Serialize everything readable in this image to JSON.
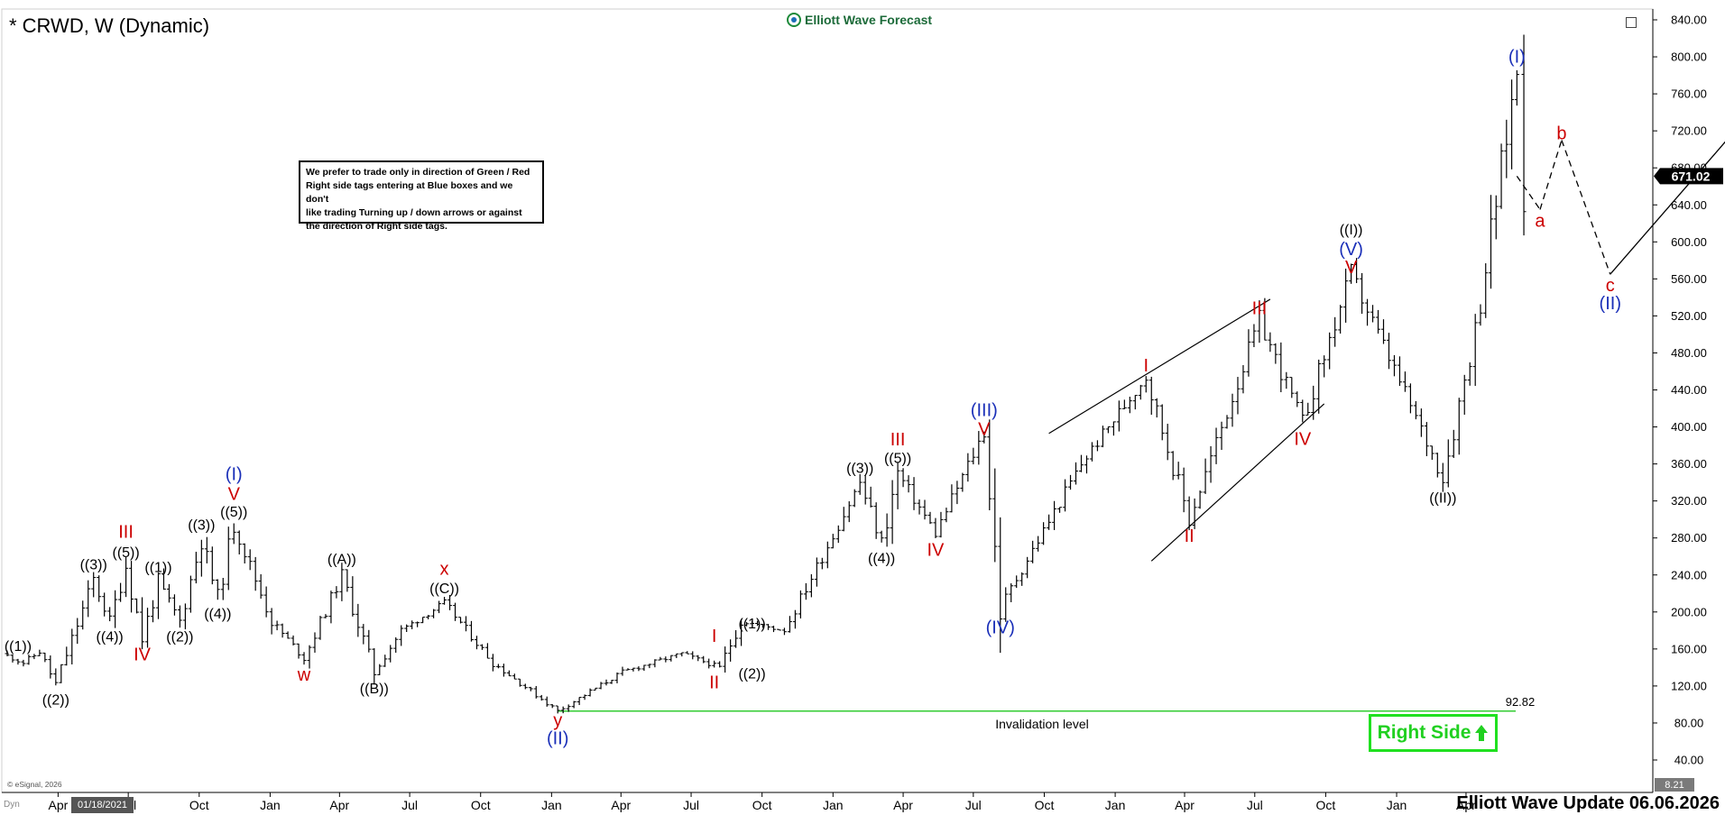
{
  "header": {
    "title": "* CRWD, W (Dynamic)",
    "brand": "Elliott Wave Forecast",
    "brand_icon": "ewf-logo-icon"
  },
  "note": {
    "lines": [
      "We prefer to trade only in direction of Green / Red",
      "Right side tags entering at Blue boxes and we don't",
      "like trading Turning up / down arrows or against",
      "the direction of Right side tags."
    ]
  },
  "right_side_tag": {
    "label": "Right Side",
    "icon": "up-arrow-icon",
    "color": "#20d020"
  },
  "footer": {
    "update_label": "Elliott Wave Update 06.06.2026",
    "esignal": "© eSignal, 2026",
    "start_date": "01/18/2021",
    "dyn": "Dyn"
  },
  "price_scale": {
    "ticks": [
      "840.00",
      "800.00",
      "760.00",
      "720.00",
      "680.00",
      "640.00",
      "600.00",
      "560.00",
      "520.00",
      "480.00",
      "440.00",
      "400.00",
      "360.00",
      "320.00",
      "280.00",
      "240.00",
      "200.00",
      "160.00",
      "120.00",
      "80.00",
      "40.00"
    ],
    "last_price": "671.02",
    "bottom_value": "8.21"
  },
  "chart_data": {
    "type": "line",
    "title": "* CRWD, W (Dynamic)",
    "ylim": [
      8.21,
      850
    ],
    "x_tick_labels": [
      "Apr",
      "Jul",
      "Oct",
      "Jan",
      "Apr",
      "Jul",
      "Oct",
      "Jan",
      "Apr",
      "Jul",
      "Oct",
      "Jan",
      "Apr",
      "Jul",
      "Oct",
      "Jan",
      "Apr",
      "Jul",
      "Oct",
      "Jan",
      "Apr"
    ],
    "x_tick_dates": [
      "2021-04-01",
      "2021-07-01",
      "2021-10-01",
      "2022-01-01",
      "2022-04-01",
      "2022-07-01",
      "2022-10-01",
      "2023-01-01",
      "2023-04-01",
      "2023-07-01",
      "2023-10-01",
      "2024-01-01",
      "2024-04-01",
      "2024-07-01",
      "2024-10-01",
      "2025-01-01",
      "2025-04-01",
      "2025-07-01",
      "2025-10-01",
      "2026-01-01",
      "2026-04-01"
    ],
    "x_range": [
      "2021-01-18",
      "2026-08-30"
    ],
    "series": [
      {
        "values": [
          [
            "2021-01-18",
            155
          ],
          [
            "2021-02-15",
            145
          ],
          [
            "2021-03-08",
            157
          ],
          [
            "2021-03-29",
            122
          ],
          [
            "2021-05-17",
            235
          ],
          [
            "2021-06-07",
            190
          ],
          [
            "2021-06-28",
            250
          ],
          [
            "2021-07-19",
            172
          ],
          [
            "2021-08-09",
            232
          ],
          [
            "2021-09-06",
            190
          ],
          [
            "2021-10-04",
            278
          ],
          [
            "2021-10-25",
            215
          ],
          [
            "2021-11-15",
            295
          ],
          [
            "2022-01-03",
            190
          ],
          [
            "2022-02-14",
            150
          ],
          [
            "2022-04-04",
            240
          ],
          [
            "2022-05-16",
            135
          ],
          [
            "2022-06-20",
            180
          ],
          [
            "2022-08-15",
            210
          ],
          [
            "2022-10-17",
            145
          ],
          [
            "2023-01-09",
            93
          ],
          [
            "2023-04-03",
            135
          ],
          [
            "2023-06-19",
            155
          ],
          [
            "2023-08-07",
            140
          ],
          [
            "2023-09-04",
            190
          ],
          [
            "2023-10-30",
            180
          ],
          [
            "2024-02-05",
            340
          ],
          [
            "2024-03-04",
            275
          ],
          [
            "2024-03-25",
            350
          ],
          [
            "2024-05-13",
            285
          ],
          [
            "2024-07-15",
            395
          ],
          [
            "2024-08-05",
            205
          ],
          [
            "2024-11-18",
            360
          ],
          [
            "2025-02-10",
            455
          ],
          [
            "2025-04-07",
            300
          ],
          [
            "2025-07-07",
            515
          ],
          [
            "2025-09-01",
            405
          ],
          [
            "2025-11-03",
            565
          ],
          [
            "2026-03-02",
            345
          ],
          [
            "2026-04-13",
            505
          ],
          [
            "2026-06-06",
            785
          ],
          [
            "2026-06-15",
            671.02
          ]
        ]
      }
    ],
    "projection": {
      "values": [
        [
          "2026-06-06",
          671.02
        ],
        [
          "2026-07-06",
          635
        ],
        [
          "2026-08-03",
          710
        ],
        [
          "2026-10-05",
          565
        ],
        [
          "2027-06-07",
          800
        ]
      ],
      "style": "dashed then solid"
    },
    "channels": [
      {
        "points": [
          [
            "2024-10-07",
            393
          ],
          [
            "2025-02-10",
            455
          ],
          [
            "2025-07-21",
            538
          ]
        ]
      },
      {
        "points": [
          [
            "2025-02-17",
            255
          ],
          [
            "2025-04-07",
            300
          ],
          [
            "2025-09-29",
            425
          ]
        ]
      }
    ],
    "invalidation": {
      "value": 92.82,
      "label": "Invalidation level",
      "value_label": "92.82"
    },
    "annotations": [
      {
        "text": "((1))",
        "date": "2021-02-08",
        "price": 147,
        "color": "#000000",
        "dy": -17
      },
      {
        "text": "((2))",
        "date": "2021-03-29",
        "price": 122,
        "color": "#000000",
        "dy": 17
      },
      {
        "text": "((3))",
        "date": "2021-05-17",
        "price": 235,
        "color": "#000000",
        "dy": -17
      },
      {
        "text": "((4))",
        "date": "2021-06-07",
        "price": 190,
        "color": "#000000",
        "dy": 17
      },
      {
        "text": "((5))",
        "date": "2021-06-28",
        "price": 250,
        "color": "#000000",
        "dy": -15
      },
      {
        "text": "III",
        "date": "2021-06-28",
        "price": 250,
        "color": "#cc0000",
        "dy": -38
      },
      {
        "text": "IV",
        "date": "2021-07-19",
        "price": 172,
        "color": "#cc0000",
        "dy": 18
      },
      {
        "text": "((1))",
        "date": "2021-08-09",
        "price": 232,
        "color": "#000000",
        "dy": -17
      },
      {
        "text": "((2))",
        "date": "2021-09-06",
        "price": 190,
        "color": "#000000",
        "dy": 17
      },
      {
        "text": "((3))",
        "date": "2021-10-04",
        "price": 278,
        "color": "#000000",
        "dy": -17
      },
      {
        "text": "((4))",
        "date": "2021-10-25",
        "price": 215,
        "color": "#000000",
        "dy": 17
      },
      {
        "text": "((5))",
        "date": "2021-11-15",
        "price": 295,
        "color": "#000000",
        "dy": -14
      },
      {
        "text": "V",
        "date": "2021-11-15",
        "price": 295,
        "color": "#cc0000",
        "dy": -34
      },
      {
        "text": "(I)",
        "date": "2021-11-15",
        "price": 295,
        "color": "#1a2fb8",
        "dy": -56
      },
      {
        "text": "w",
        "date": "2022-02-14",
        "price": 150,
        "color": "#cc0000",
        "dy": 18
      },
      {
        "text": "((A))",
        "date": "2022-04-04",
        "price": 240,
        "color": "#000000",
        "dy": -18
      },
      {
        "text": "((B))",
        "date": "2022-05-16",
        "price": 135,
        "color": "#000000",
        "dy": 18
      },
      {
        "text": "((C))",
        "date": "2022-08-15",
        "price": 210,
        "color": "#000000",
        "dy": -16
      },
      {
        "text": "x",
        "date": "2022-08-15",
        "price": 210,
        "color": "#cc0000",
        "dy": -38
      },
      {
        "text": "y",
        "date": "2023-01-09",
        "price": 93,
        "color": "#cc0000",
        "dy": 10
      },
      {
        "text": "(II)",
        "date": "2023-01-09",
        "price": 93,
        "color": "#1a2fb8",
        "dy": 30
      },
      {
        "text": "I",
        "date": "2023-07-31",
        "price": 155,
        "color": "#cc0000",
        "dy": -20
      },
      {
        "text": "II",
        "date": "2023-07-31",
        "price": 140,
        "color": "#cc0000",
        "dy": 16
      },
      {
        "text": "((1))",
        "date": "2023-09-18",
        "price": 172,
        "color": "#000000",
        "dy": -16
      },
      {
        "text": "((2))",
        "date": "2023-09-18",
        "price": 150,
        "color": "#000000",
        "dy": 17
      },
      {
        "text": "((3))",
        "date": "2024-02-05",
        "price": 340,
        "color": "#000000",
        "dy": -16
      },
      {
        "text": "((4))",
        "date": "2024-03-04",
        "price": 275,
        "color": "#000000",
        "dy": 17
      },
      {
        "text": "((5))",
        "date": "2024-03-25",
        "price": 350,
        "color": "#000000",
        "dy": -17
      },
      {
        "text": "III",
        "date": "2024-03-25",
        "price": 350,
        "color": "#cc0000",
        "dy": -38
      },
      {
        "text": "IV",
        "date": "2024-05-13",
        "price": 285,
        "color": "#cc0000",
        "dy": 18
      },
      {
        "text": "V",
        "date": "2024-07-15",
        "price": 395,
        "color": "#cc0000",
        "dy": -3
      },
      {
        "text": "(III)",
        "date": "2024-07-15",
        "price": 395,
        "color": "#1a2fb8",
        "dy": -24
      },
      {
        "text": "(IV)",
        "date": "2024-08-05",
        "price": 205,
        "color": "#1a2fb8",
        "dy": 22
      },
      {
        "text": "I",
        "date": "2025-02-10",
        "price": 455,
        "color": "#cc0000",
        "dy": -12
      },
      {
        "text": "II",
        "date": "2025-04-07",
        "price": 300,
        "color": "#cc0000",
        "dy": 18
      },
      {
        "text": "III",
        "date": "2025-07-07",
        "price": 515,
        "color": "#cc0000",
        "dy": -14
      },
      {
        "text": "IV",
        "date": "2025-09-01",
        "price": 405,
        "color": "#cc0000",
        "dy": 18
      },
      {
        "text": "V",
        "date": "2025-11-03",
        "price": 565,
        "color": "#cc0000",
        "dy": -8
      },
      {
        "text": "(V)",
        "date": "2025-11-03",
        "price": 565,
        "color": "#1a2fb8",
        "dy": -28
      },
      {
        "text": "((I))",
        "date": "2025-11-03",
        "price": 565,
        "color": "#000000",
        "dy": -50
      },
      {
        "text": "((II))",
        "date": "2026-03-02",
        "price": 345,
        "color": "#000000",
        "dy": 22
      },
      {
        "text": "(I)",
        "date": "2026-06-06",
        "price": 785,
        "color": "#1a2fb8",
        "dy": -16
      },
      {
        "text": "a",
        "date": "2026-07-06",
        "price": 635,
        "color": "#cc0000",
        "dy": 12
      },
      {
        "text": "b",
        "date": "2026-08-03",
        "price": 710,
        "color": "#cc0000",
        "dy": -8
      },
      {
        "text": "c",
        "date": "2026-10-05",
        "price": 565,
        "color": "#cc0000",
        "dy": 12
      },
      {
        "text": "(II)",
        "date": "2026-10-05",
        "price": 565,
        "color": "#1a2fb8",
        "dy": 32
      }
    ],
    "colors": {
      "candles": "#000000",
      "invalidation": "#33cc33",
      "blue": "#1a2fb8",
      "red": "#cc0000"
    }
  }
}
